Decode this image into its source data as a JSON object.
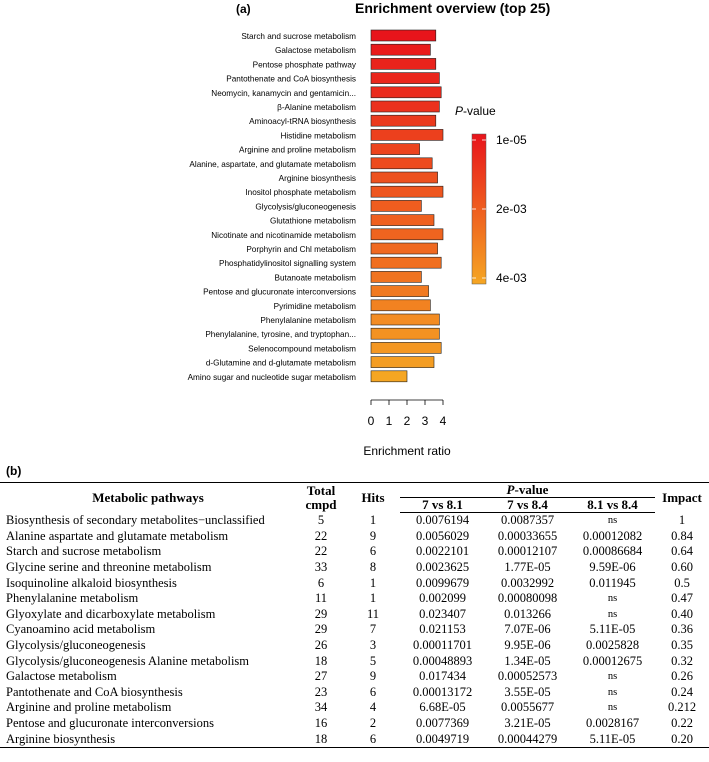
{
  "chart_data": {
    "type": "bar",
    "orientation": "horizontal",
    "panel_label": "(a)",
    "title": "Enrichment overview (top 25)",
    "xlabel": "Enrichment ratio",
    "xlim": [
      0,
      4
    ],
    "xticks": [
      0,
      1,
      2,
      3,
      4
    ],
    "legend": {
      "title": "P-value",
      "ticks": [
        "1e-05",
        "2e-03",
        "4e-03"
      ],
      "color_high": "#e8141b",
      "color_low": "#f5a623"
    },
    "categories": [
      "Starch and sucrose metabolism",
      "Galactose metabolism",
      "Pentose phosphate pathway",
      "Pantothenate and CoA biosynthesis",
      "Neomycin, kanamycin and gentamicin...",
      "β-Alanine metabolism",
      "Aminoacyl-tRNA biosynthesis",
      "Histidine metabolism",
      "Arginine and proline metabolism",
      "Alanine, aspartate, and glutamate metabolism",
      "Arginine biosynthesis",
      "Inositol phosphate metabolism",
      "Glycolysis/gluconeogenesis",
      "Glutathione metabolism",
      "Nicotinate and nicotinamide metabolism",
      "Porphyrin and Chl metabolism",
      "Phosphatidylinositol signalling system",
      "Butanoate metabolism",
      "Pentose and glucuronate interconversions",
      "Pyrimidine metabolism",
      "Phenylalanine metabolism",
      "Phenylalanine, tyrosine, and tryptophan...",
      "Selenocompound metabolism",
      "d-Glutamine and d-glutamate metabolism",
      "Amino sugar and nucleotide sugar metabolism"
    ],
    "values": [
      3.6,
      3.3,
      3.6,
      3.8,
      3.9,
      3.8,
      3.6,
      4.0,
      2.7,
      3.4,
      3.7,
      4.0,
      2.8,
      3.5,
      4.0,
      3.7,
      3.9,
      2.8,
      3.2,
      3.3,
      3.8,
      3.8,
      3.9,
      3.5,
      2.0
    ],
    "color_rank": [
      0.0,
      0.05,
      0.1,
      0.12,
      0.15,
      0.2,
      0.25,
      0.3,
      0.33,
      0.38,
      0.42,
      0.45,
      0.5,
      0.52,
      0.55,
      0.58,
      0.62,
      0.65,
      0.7,
      0.75,
      0.82,
      0.86,
      0.9,
      0.94,
      1.0
    ]
  },
  "table": {
    "panel_label": "(b)",
    "headers": {
      "pathways": "Metabolic pathways",
      "total": "Total cmpd",
      "hits": "Hits",
      "pvalue": "P-value",
      "c1": "7 vs 8.1",
      "c2": "7 vs 8.4",
      "c3": "8.1 vs 8.4",
      "impact": "Impact"
    },
    "rows": [
      {
        "name": "Biosynthesis of secondary metabolites−unclassified",
        "total": "5",
        "hits": "1",
        "p1": "0.0076194",
        "p2": "0.0087357",
        "p3": "ns",
        "impact": "1"
      },
      {
        "name": "Alanine aspartate and glutamate metabolism",
        "total": "22",
        "hits": "9",
        "p1": "0.0056029",
        "p2": "0.00033655",
        "p3": "0.00012082",
        "impact": "0.84"
      },
      {
        "name": "Starch and sucrose metabolism",
        "total": "22",
        "hits": "6",
        "p1": "0.0022101",
        "p2": "0.00012107",
        "p3": "0.00086684",
        "impact": "0.64"
      },
      {
        "name": "Glycine serine and threonine metabolism",
        "total": "33",
        "hits": "8",
        "p1": "0.0023625",
        "p2": "1.77E-05",
        "p3": "9.59E-06",
        "impact": "0.60"
      },
      {
        "name": "Isoquinoline alkaloid biosynthesis",
        "total": "6",
        "hits": "1",
        "p1": "0.0099679",
        "p2": "0.0032992",
        "p3": "0.011945",
        "impact": "0.5"
      },
      {
        "name": "Phenylalanine metabolism",
        "total": "11",
        "hits": "1",
        "p1": "0.002099",
        "p2": "0.00080098",
        "p3": "ns",
        "impact": "0.47"
      },
      {
        "name": "Glyoxylate and dicarboxylate metabolism",
        "total": "29",
        "hits": "11",
        "p1": "0.023407",
        "p2": "0.013266",
        "p3": "ns",
        "impact": "0.40"
      },
      {
        "name": "Cyanoamino acid metabolism",
        "total": "29",
        "hits": "7",
        "p1": "0.021153",
        "p2": "7.07E-06",
        "p3": "5.11E-05",
        "impact": "0.36"
      },
      {
        "name": "Glycolysis/gluconeogenesis",
        "total": "26",
        "hits": "3",
        "p1": "0.00011701",
        "p2": "9.95E-06",
        "p3": "0.0025828",
        "impact": "0.35"
      },
      {
        "name": "Glycolysis/gluconeogenesis Alanine metabolism",
        "total": "18",
        "hits": "5",
        "p1": "0.00048893",
        "p2": "1.34E-05",
        "p3": "0.00012675",
        "impact": "0.32"
      },
      {
        "name": "Galactose metabolism",
        "total": "27",
        "hits": "9",
        "p1": "0.017434",
        "p2": "0.00052573",
        "p3": "ns",
        "impact": "0.26"
      },
      {
        "name": "Pantothenate and CoA biosynthesis",
        "total": "23",
        "hits": "6",
        "p1": "0.00013172",
        "p2": "3.55E-05",
        "p3": "ns",
        "impact": "0.24"
      },
      {
        "name": "Arginine and proline metabolism",
        "total": "34",
        "hits": "4",
        "p1": "6.68E-05",
        "p2": "0.0055677",
        "p3": "ns",
        "impact": "0.212"
      },
      {
        "name": "Pentose and glucuronate interconversions",
        "total": "16",
        "hits": "2",
        "p1": "0.0077369",
        "p2": "3.21E-05",
        "p3": "0.0028167",
        "impact": "0.22"
      },
      {
        "name": "Arginine biosynthesis",
        "total": "18",
        "hits": "6",
        "p1": "0.0049719",
        "p2": "0.00044279",
        "p3": "5.11E-05",
        "impact": "0.20"
      }
    ]
  }
}
